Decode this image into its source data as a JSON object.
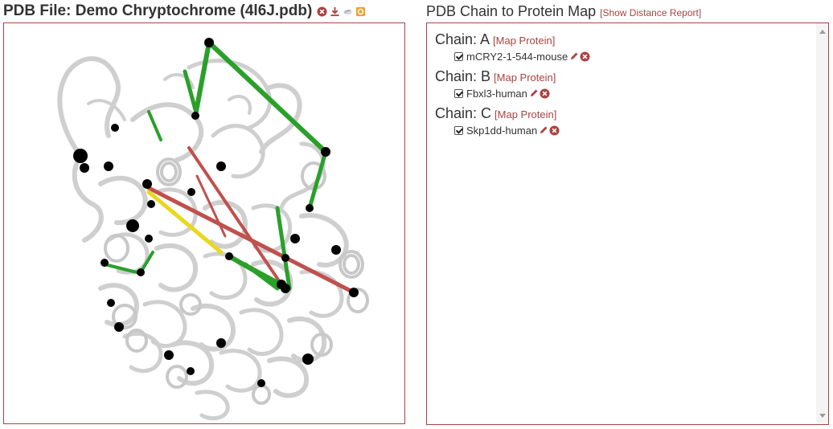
{
  "left_panel": {
    "title": "PDB File: Demo Chryptochrome (4l6J.pdb)",
    "icons": [
      "remove-icon",
      "download-icon",
      "view-icon",
      "settings-icon"
    ]
  },
  "right_panel": {
    "title": "PDB Chain to Protein Map",
    "report_link": "[Show Distance Report]",
    "chains": [
      {
        "label": "Chain: A",
        "map_link": "[Map Protein]",
        "protein": "mCRY2-1-544-mouse",
        "checked": true
      },
      {
        "label": "Chain: B",
        "map_link": "[Map Protein]",
        "protein": "Fbxl3-human",
        "checked": true
      },
      {
        "label": "Chain: C",
        "map_link": "[Map Protein]",
        "protein": "Skp1dd-human",
        "checked": true
      }
    ]
  },
  "colors": {
    "accent": "#a94442",
    "crosslink_green": "#2aa02a",
    "crosslink_red": "#c0504d",
    "crosslink_yellow": "#e8d81a",
    "backbone": "#cfcfcf"
  }
}
